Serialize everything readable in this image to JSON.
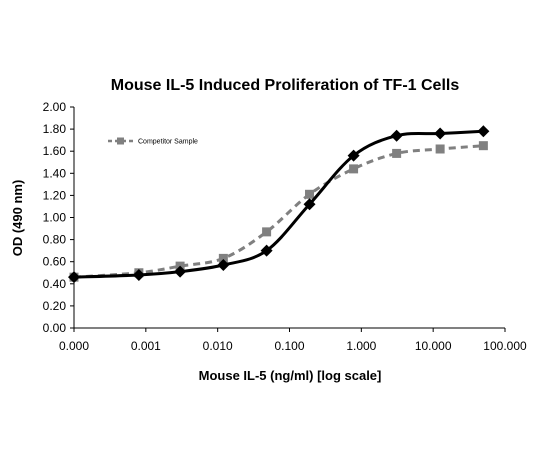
{
  "chart_data": {
    "type": "line",
    "title": "Mouse IL-5 Induced Proliferation of TF-1 Cells",
    "xlabel": "Mouse IL-5  (ng/ml) [log scale]",
    "ylabel": "OD (490 nm)",
    "x_scale": "log",
    "x_tick_labels": [
      "0.000",
      "0.001",
      "0.010",
      "0.100",
      "1.000",
      "10.000",
      "100.000"
    ],
    "y_tick_labels": [
      "0.00",
      "0.20",
      "0.40",
      "0.60",
      "0.80",
      "1.00",
      "1.20",
      "1.40",
      "1.60",
      "1.80",
      "2.00"
    ],
    "xlim": [
      0.0001,
      100
    ],
    "ylim": [
      0,
      2.0
    ],
    "grid": false,
    "legend_position": "top-left",
    "series": [
      {
        "name": "",
        "color": "#000000",
        "line_style": "solid",
        "marker": "diamond",
        "x": [
          0.0001,
          0.0008,
          0.003,
          0.012,
          0.048,
          0.19,
          0.78,
          3.1,
          12.5,
          50
        ],
        "y": [
          0.46,
          0.48,
          0.51,
          0.57,
          0.7,
          1.12,
          1.56,
          1.74,
          1.76,
          1.78
        ]
      },
      {
        "name": "Competitor Sample",
        "color": "#808080",
        "line_style": "dashed",
        "marker": "square",
        "x": [
          0.0001,
          0.0008,
          0.003,
          0.012,
          0.048,
          0.19,
          0.78,
          3.1,
          12.5,
          50
        ],
        "y": [
          0.46,
          0.5,
          0.56,
          0.63,
          0.87,
          1.21,
          1.44,
          1.58,
          1.62,
          1.65
        ]
      }
    ]
  }
}
